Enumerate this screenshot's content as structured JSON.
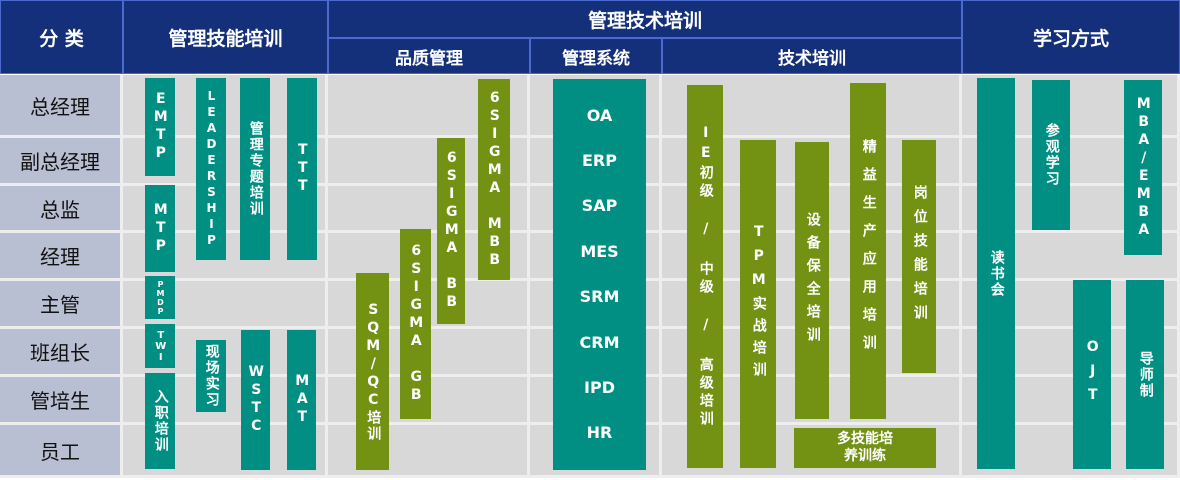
{
  "header": {
    "category": "分 类",
    "mgmt_skill": "管理技能培训",
    "mgmt_tech": "管理技术培训",
    "quality": "品质管理",
    "system": "管理系统",
    "tech": "技术培训",
    "learning": "学习方式"
  },
  "rows": [
    "总经理",
    "副总经理",
    "总监",
    "经理",
    "主管",
    "班组长",
    "管培生",
    "员工"
  ],
  "boxes": {
    "emtp": "EMTP",
    "leadership": "LEADERSHIP",
    "topic": "管理专题培训",
    "ttt": "TTT",
    "mtp": "MTP",
    "pmdp": "PMDP",
    "twi": "TWI",
    "onboard": "入职培训",
    "onsite": "现场实习",
    "wstc": "WSTC",
    "mat": "MAT",
    "sqm": "SQM/QC培训",
    "gb": "6SIGMA GB",
    "bb": "6SIGMA BB",
    "mbb": "6SIGMA MBB",
    "ie": "IE初级 / 中级 / 高级培训",
    "tpm": "TPM实战培训",
    "equip": "设备保全培训",
    "lean": "精益生产应用培训",
    "post": "岗位技能培训",
    "multi": "多技能培养训练",
    "reading": "读书会",
    "visit": "参观学习",
    "mba": "MBA/EMBA",
    "ojt": "OJT",
    "mentor": "导师制"
  },
  "systems": [
    "OA",
    "ERP",
    "SAP",
    "MES",
    "SRM",
    "CRM",
    "IPD",
    "HR"
  ],
  "colors": {
    "header": "#14307a",
    "teal": "#008f82",
    "olive": "#739113",
    "row_label": "#b9bfd2",
    "cell": "#d8d8d8"
  }
}
